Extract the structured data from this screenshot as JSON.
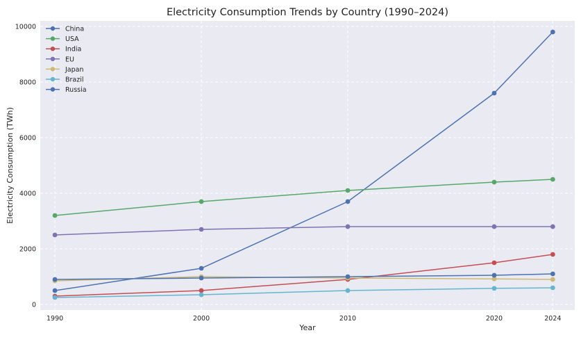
{
  "chart_data": {
    "type": "line",
    "title": "Electricity Consumption Trends by Country (1990–2024)",
    "xlabel": "Year",
    "ylabel": "Electricity Consumption (TWh)",
    "x": [
      1990,
      2000,
      2010,
      2020,
      2024
    ],
    "xlim": [
      1989,
      2025.5
    ],
    "ylim": [
      -200,
      10200
    ],
    "yticks": [
      0,
      2000,
      4000,
      6000,
      8000,
      10000
    ],
    "grid": true,
    "legend_position": "top-left",
    "series": [
      {
        "name": "China",
        "color": "#4c72b0",
        "values": [
          500,
          1300,
          3700,
          7600,
          9800
        ]
      },
      {
        "name": "USA",
        "color": "#55a868",
        "values": [
          3200,
          3700,
          4100,
          4400,
          4500
        ]
      },
      {
        "name": "India",
        "color": "#c44e52",
        "values": [
          300,
          500,
          900,
          1500,
          1800
        ]
      },
      {
        "name": "EU",
        "color": "#8172b2",
        "values": [
          2500,
          2700,
          2800,
          2800,
          2800
        ]
      },
      {
        "name": "Japan",
        "color": "#ccb974",
        "values": [
          850,
          1000,
          950,
          920,
          900
        ]
      },
      {
        "name": "Brazil",
        "color": "#64b5cd",
        "values": [
          250,
          350,
          500,
          580,
          600
        ]
      },
      {
        "name": "Russia",
        "color": "#4c72b0",
        "values": [
          900,
          950,
          1000,
          1050,
          1100
        ]
      }
    ]
  }
}
